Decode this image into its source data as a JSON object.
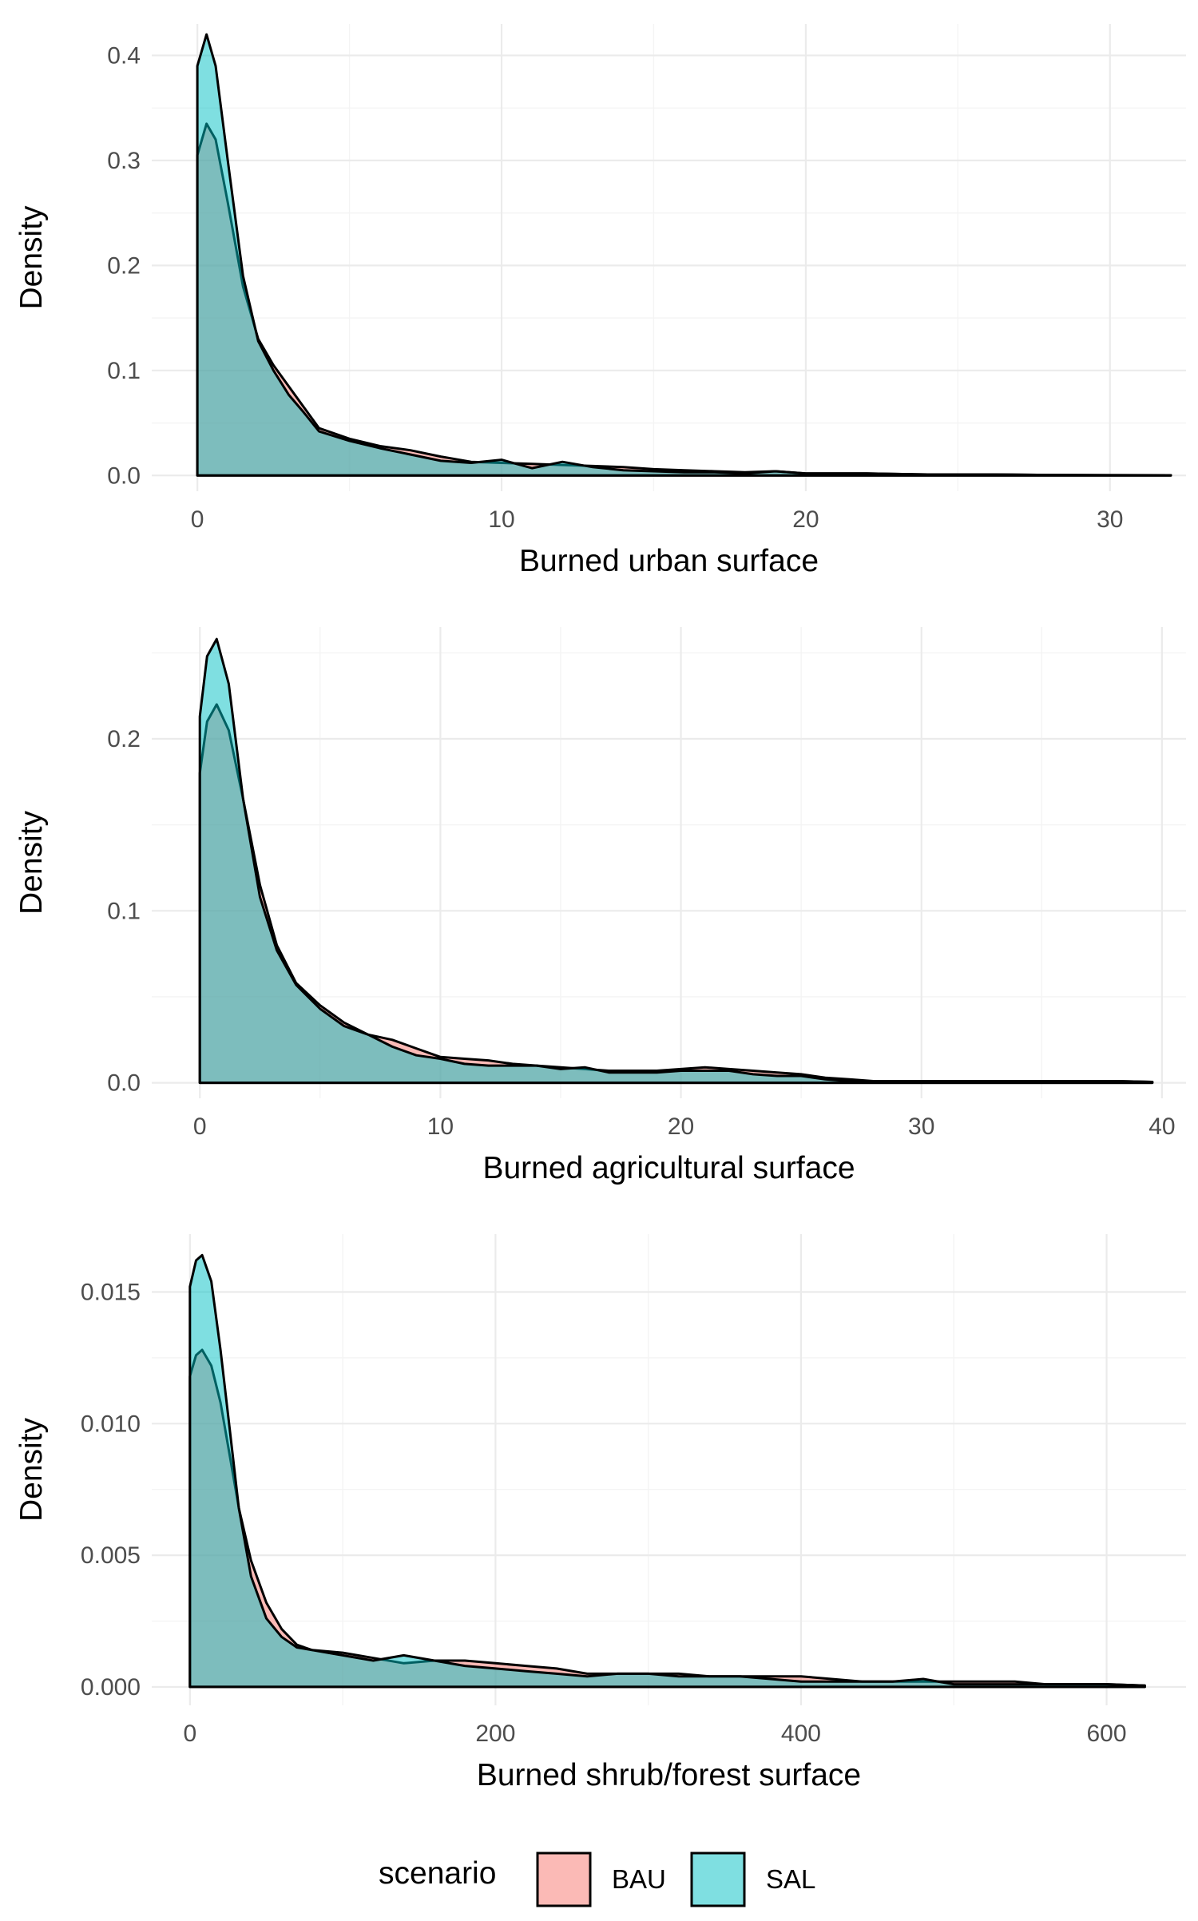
{
  "colors": {
    "BAU": "#F8766D",
    "SAL": "#00BFC4"
  },
  "legend": {
    "title": "scenario",
    "items": [
      {
        "key": "BAU",
        "label": "BAU"
      },
      {
        "key": "SAL",
        "label": "SAL"
      }
    ],
    "placement": "bottom"
  },
  "chart_data": [
    {
      "type": "area",
      "chart": "density",
      "xlabel": "Burned urban surface",
      "ylabel": "Density",
      "xlim": [
        -1.5,
        32.5
      ],
      "ylim": [
        -0.015,
        0.43
      ],
      "xticks": [
        0,
        10,
        20,
        30
      ],
      "xtick_labels": [
        "0",
        "10",
        "20",
        "30"
      ],
      "yticks": [
        0,
        0.1,
        0.2,
        0.3,
        0.4
      ],
      "ytick_labels": [
        "0.0",
        "0.1",
        "0.2",
        "0.3",
        "0.4"
      ],
      "grid": true,
      "series": [
        {
          "name": "BAU",
          "x": [
            0,
            0.3,
            0.6,
            1,
            1.5,
            2,
            2.5,
            3,
            3.5,
            4,
            5,
            6,
            7,
            8,
            9,
            10,
            11,
            12,
            13,
            14,
            15,
            16,
            17,
            18,
            19,
            20,
            22,
            24,
            26,
            28,
            30,
            32
          ],
          "y": [
            0.305,
            0.335,
            0.32,
            0.26,
            0.18,
            0.13,
            0.105,
            0.085,
            0.065,
            0.045,
            0.035,
            0.028,
            0.024,
            0.018,
            0.013,
            0.012,
            0.011,
            0.01,
            0.009,
            0.008,
            0.006,
            0.005,
            0.004,
            0.003,
            0.004,
            0.002,
            0.002,
            0.001,
            0.001,
            0.0005,
            0.0003,
            0.0002
          ]
        },
        {
          "name": "SAL",
          "x": [
            0,
            0.3,
            0.6,
            1,
            1.5,
            2,
            2.5,
            3,
            3.5,
            4,
            5,
            6,
            7,
            8,
            9,
            10,
            11,
            12,
            13,
            14,
            15,
            16,
            17,
            18,
            19,
            20,
            22,
            24,
            26,
            28,
            30,
            32
          ],
          "y": [
            0.39,
            0.42,
            0.39,
            0.3,
            0.19,
            0.128,
            0.1,
            0.077,
            0.06,
            0.042,
            0.033,
            0.026,
            0.02,
            0.014,
            0.012,
            0.015,
            0.007,
            0.013,
            0.008,
            0.005,
            0.004,
            0.003,
            0.003,
            0.002,
            0.004,
            0.002,
            0.002,
            0.001,
            0.001,
            0.0005,
            0.0003,
            0.0002
          ]
        }
      ]
    },
    {
      "type": "area",
      "chart": "density",
      "xlabel": "Burned agricultural surface",
      "ylabel": "Density",
      "xlim": [
        -2,
        41
      ],
      "ylim": [
        -0.009,
        0.265
      ],
      "xticks": [
        0,
        10,
        20,
        30,
        40
      ],
      "xtick_labels": [
        "0",
        "10",
        "20",
        "30",
        "40"
      ],
      "yticks": [
        0,
        0.1,
        0.2
      ],
      "ytick_labels": [
        "0.0",
        "0.1",
        "0.2"
      ],
      "grid": true,
      "series": [
        {
          "name": "BAU",
          "x": [
            0,
            0.3,
            0.7,
            1.2,
            1.8,
            2.5,
            3.2,
            4,
            5,
            6,
            7,
            8,
            9,
            10,
            11,
            12,
            13,
            14,
            15,
            16,
            17,
            18,
            19,
            20,
            21,
            22,
            23,
            24,
            25,
            26,
            27,
            28,
            30,
            32,
            34,
            36,
            38,
            39.6
          ],
          "y": [
            0.18,
            0.21,
            0.22,
            0.205,
            0.165,
            0.115,
            0.08,
            0.058,
            0.045,
            0.035,
            0.028,
            0.025,
            0.02,
            0.015,
            0.014,
            0.013,
            0.011,
            0.01,
            0.009,
            0.008,
            0.007,
            0.007,
            0.007,
            0.008,
            0.009,
            0.008,
            0.007,
            0.006,
            0.005,
            0.003,
            0.002,
            0.001,
            0.001,
            0.001,
            0.001,
            0.001,
            0.001,
            0.0005
          ]
        },
        {
          "name": "SAL",
          "x": [
            0,
            0.3,
            0.7,
            1.2,
            1.8,
            2.5,
            3.2,
            4,
            5,
            6,
            7,
            8,
            9,
            10,
            11,
            12,
            13,
            14,
            15,
            16,
            17,
            18,
            19,
            20,
            21,
            22,
            23,
            24,
            25,
            26,
            27,
            28,
            30,
            32,
            34,
            36,
            38,
            39.6
          ],
          "y": [
            0.213,
            0.248,
            0.258,
            0.232,
            0.165,
            0.108,
            0.077,
            0.057,
            0.043,
            0.033,
            0.028,
            0.021,
            0.016,
            0.014,
            0.011,
            0.01,
            0.01,
            0.01,
            0.008,
            0.009,
            0.006,
            0.006,
            0.006,
            0.007,
            0.007,
            0.007,
            0.005,
            0.004,
            0.004,
            0.002,
            0.001,
            0.001,
            0.001,
            0.001,
            0.001,
            0.001,
            0.001,
            0.0005
          ]
        }
      ]
    },
    {
      "type": "area",
      "chart": "density",
      "xlabel": "Burned shrub/forest surface",
      "ylabel": "Density",
      "xlim": [
        -25,
        652
      ],
      "ylim": [
        -0.0007,
        0.0172
      ],
      "xticks": [
        0,
        200,
        400,
        600
      ],
      "xtick_labels": [
        "0",
        "200",
        "400",
        "600"
      ],
      "yticks": [
        0,
        0.005,
        0.01,
        0.015
      ],
      "ytick_labels": [
        "0.000",
        "0.005",
        "0.010",
        "0.015"
      ],
      "grid": true,
      "series": [
        {
          "name": "BAU",
          "x": [
            0,
            4,
            8,
            14,
            20,
            26,
            32,
            40,
            50,
            60,
            70,
            80,
            100,
            120,
            140,
            160,
            180,
            200,
            220,
            240,
            260,
            280,
            300,
            320,
            340,
            360,
            380,
            400,
            420,
            440,
            460,
            480,
            500,
            520,
            540,
            560,
            580,
            600,
            625
          ],
          "y": [
            0.0118,
            0.0126,
            0.0128,
            0.0122,
            0.0108,
            0.0088,
            0.0068,
            0.0048,
            0.0032,
            0.0022,
            0.0016,
            0.0014,
            0.0013,
            0.0011,
            0.0009,
            0.001,
            0.001,
            0.0009,
            0.0008,
            0.0007,
            0.0005,
            0.0005,
            0.0005,
            0.0005,
            0.0004,
            0.0004,
            0.0004,
            0.0004,
            0.0003,
            0.0002,
            0.0002,
            0.0002,
            0.0002,
            0.0002,
            0.0002,
            0.0001,
            0.0001,
            0.0001,
            5e-05
          ]
        },
        {
          "name": "SAL",
          "x": [
            0,
            4,
            8,
            14,
            20,
            26,
            32,
            40,
            50,
            60,
            70,
            80,
            100,
            120,
            140,
            160,
            180,
            200,
            220,
            240,
            260,
            280,
            300,
            320,
            340,
            360,
            380,
            400,
            420,
            440,
            460,
            480,
            500,
            520,
            540,
            560,
            580,
            600,
            625
          ],
          "y": [
            0.0152,
            0.0162,
            0.0164,
            0.0154,
            0.0128,
            0.0098,
            0.0068,
            0.0042,
            0.0026,
            0.0019,
            0.0015,
            0.0014,
            0.0012,
            0.001,
            0.0012,
            0.001,
            0.0008,
            0.0007,
            0.0006,
            0.0005,
            0.0004,
            0.0005,
            0.0005,
            0.0004,
            0.0004,
            0.0004,
            0.0003,
            0.0002,
            0.0002,
            0.0002,
            0.0002,
            0.0003,
            0.0001,
            0.0001,
            0.0001,
            0.0001,
            0.0001,
            0.0001,
            5e-05
          ]
        }
      ]
    }
  ]
}
